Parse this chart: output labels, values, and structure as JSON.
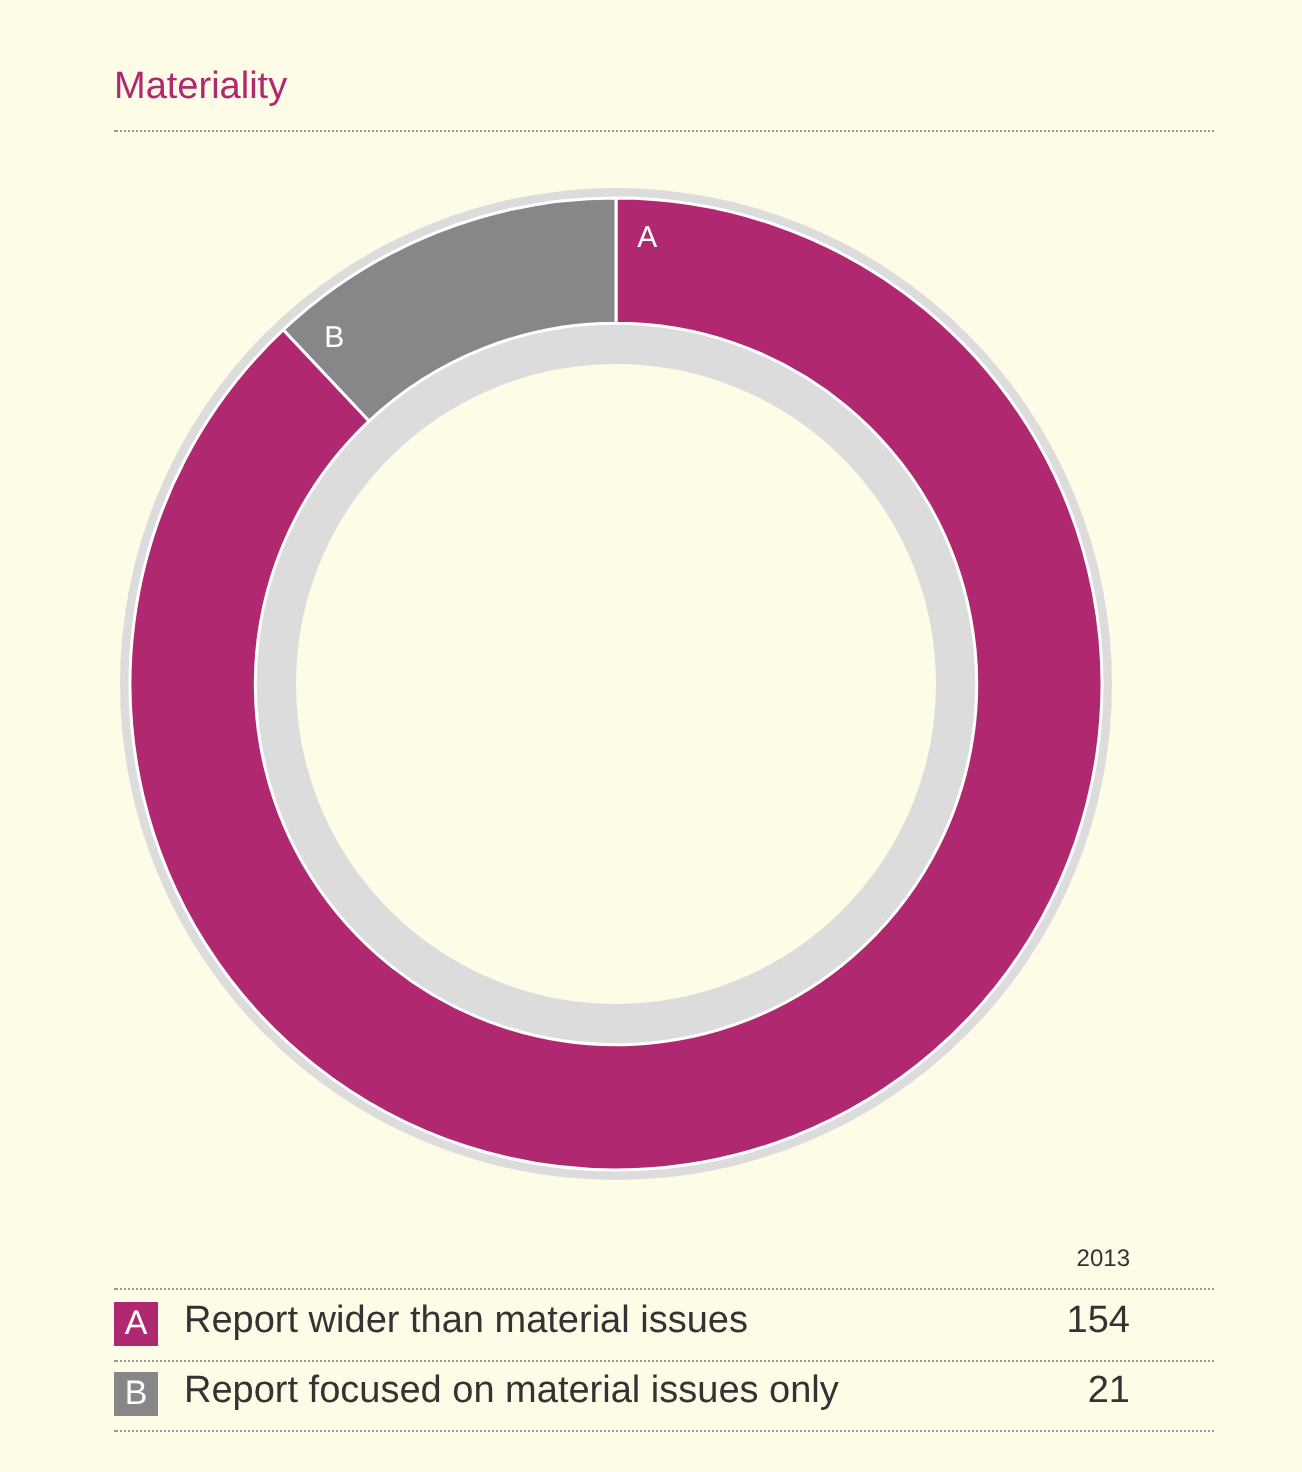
{
  "chart_data": {
    "type": "donut",
    "title": "Materiality",
    "legend_title": "2013",
    "categories": [
      "Report wider than material issues",
      "Report focused on material issues only"
    ],
    "values": [
      154,
      21
    ],
    "colors": [
      "#b0286f",
      "#87878a"
    ],
    "annotations": [
      "A",
      "B"
    ],
    "data_labels": true,
    "legend": "bottom"
  }
}
